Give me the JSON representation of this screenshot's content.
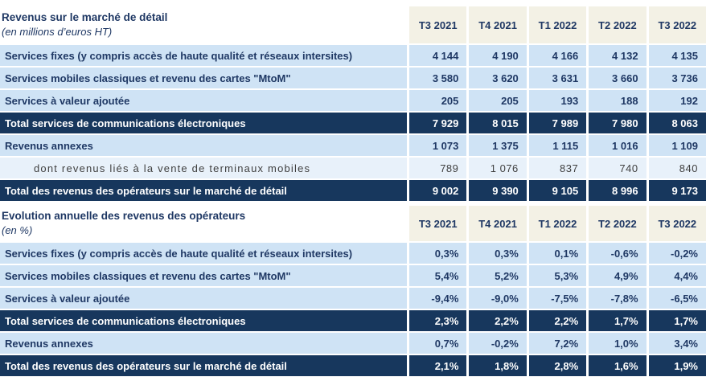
{
  "colors": {
    "navy_row_bg": "#17375d",
    "light_row_bg": "#cfe3f5",
    "sub_row_bg": "#e8f1fa",
    "header_cell_bg": "#f3f1e5",
    "text_navy": "#1f3864",
    "text_white": "#ffffff",
    "text_sub": "#3f3f3f"
  },
  "table1": {
    "title": "Revenus sur le marché de détail",
    "subtitle": "(en millions d’euros HT)",
    "columns": [
      "T3 2021",
      "T4 2021",
      "T1 2022",
      "T2 2022",
      "T3 2022"
    ],
    "rows": [
      {
        "label": "Services fixes (y compris accès de haute qualité et réseaux intersites)",
        "values": [
          "4 144",
          "4 190",
          "4 166",
          "4 132",
          "4 135"
        ]
      },
      {
        "label": "Services mobiles classiques et revenu des cartes \"MtoM\"",
        "values": [
          "3 580",
          "3 620",
          "3 631",
          "3 660",
          "3 736"
        ]
      },
      {
        "label": "Services à valeur ajoutée",
        "values": [
          "205",
          "205",
          "193",
          "188",
          "192"
        ]
      },
      {
        "label": "Total services de communications électroniques",
        "values": [
          "7 929",
          "8 015",
          "7 989",
          "7 980",
          "8 063"
        ]
      },
      {
        "label": "Revenus annexes",
        "values": [
          "1 073",
          "1 375",
          "1 115",
          "1 016",
          "1 109"
        ]
      },
      {
        "label": "dont revenus liés à la vente de terminaux mobiles",
        "values": [
          "789",
          "1 076",
          "837",
          "740",
          "840"
        ]
      },
      {
        "label": "Total des revenus des opérateurs sur le marché de détail",
        "values": [
          "9 002",
          "9 390",
          "9 105",
          "8 996",
          "9 173"
        ]
      }
    ]
  },
  "table2": {
    "title": "Evolution annuelle des revenus des opérateurs",
    "subtitle": "(en %)",
    "columns": [
      "T3 2021",
      "T4 2021",
      "T1 2022",
      "T2 2022",
      "T3 2022"
    ],
    "rows": [
      {
        "label": "Services fixes (y compris accès de haute qualité et réseaux intersites)",
        "values": [
          "0,3%",
          "0,3%",
          "0,1%",
          "-0,6%",
          "-0,2%"
        ]
      },
      {
        "label": "Services mobiles classiques et revenu des cartes \"MtoM\"",
        "values": [
          "5,4%",
          "5,2%",
          "5,3%",
          "4,9%",
          "4,4%"
        ]
      },
      {
        "label": "Services à valeur ajoutée",
        "values": [
          "-9,4%",
          "-9,0%",
          "-7,5%",
          "-7,8%",
          "-6,5%"
        ]
      },
      {
        "label": "Total services de communications électroniques",
        "values": [
          "2,3%",
          "2,2%",
          "2,2%",
          "1,7%",
          "1,7%"
        ]
      },
      {
        "label": "Revenus annexes",
        "values": [
          "0,7%",
          "-0,2%",
          "7,2%",
          "1,0%",
          "3,4%"
        ]
      },
      {
        "label": "Total des revenus des opérateurs sur le marché de détail",
        "values": [
          "2,1%",
          "1,8%",
          "2,8%",
          "1,6%",
          "1,9%"
        ]
      }
    ]
  }
}
